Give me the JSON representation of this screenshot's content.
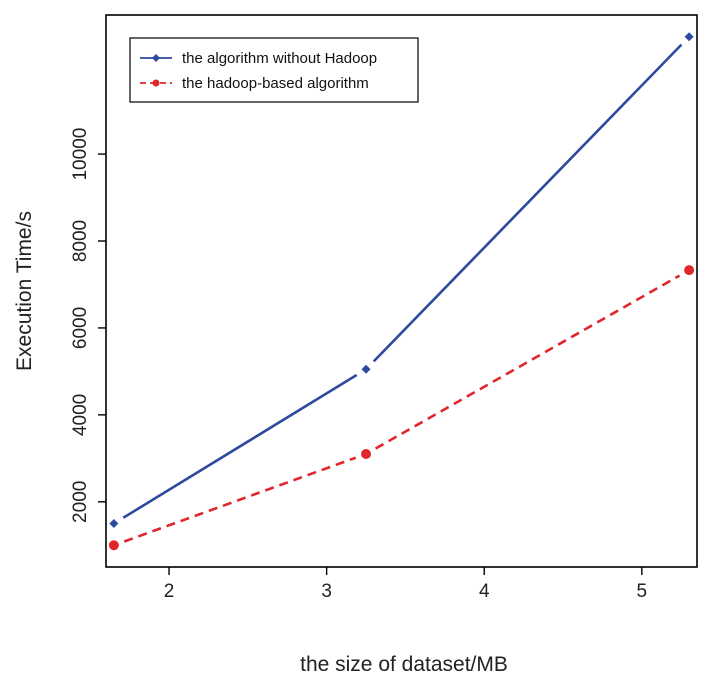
{
  "chart_data": {
    "type": "line",
    "title": "",
    "xlabel": "the size of dataset/MB",
    "ylabel": "Execution Time/s",
    "xlim": [
      1.6,
      5.35
    ],
    "ylim": [
      500,
      13200
    ],
    "xticks": [
      2,
      3,
      4,
      5
    ],
    "yticks": [
      2000,
      4000,
      6000,
      8000,
      10000
    ],
    "grid": false,
    "legend_position": "top-left",
    "series": [
      {
        "name": "the algorithm without Hadoop",
        "color": "#2e4a9e",
        "line_style": "solid",
        "marker": "diamond",
        "x": [
          1.65,
          3.25,
          5.3
        ],
        "y": [
          1500,
          5050,
          12700
        ]
      },
      {
        "name": "the hadoop-based algorithm",
        "color": "#e0262b",
        "line_style": "dashed",
        "marker": "circle",
        "x": [
          1.65,
          3.25,
          5.3
        ],
        "y": [
          1000,
          3100,
          7330
        ]
      }
    ]
  }
}
